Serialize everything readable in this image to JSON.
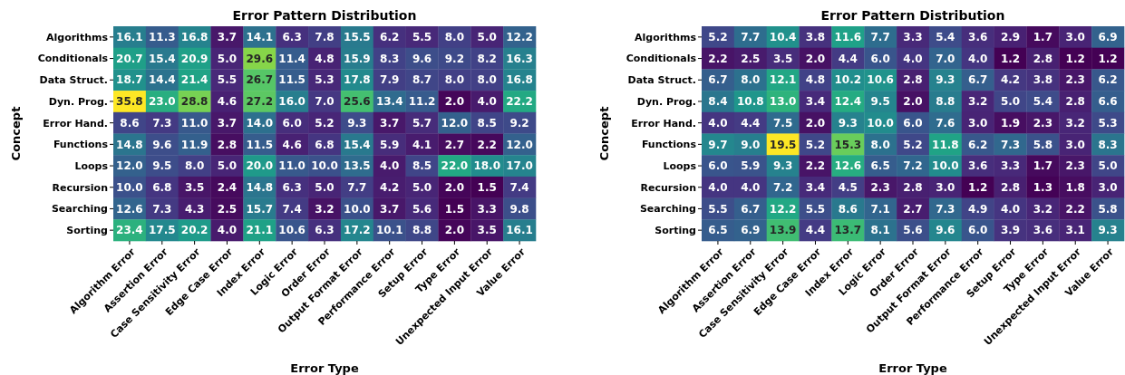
{
  "chart_data": [
    {
      "type": "heatmap",
      "title": "Error Pattern Distribution",
      "xlabel": "Error Type",
      "ylabel": "Concept",
      "categories": [
        "Algorithm Error",
        "Assertion Error",
        "Case Sensitivity Error",
        "Edge Case Error",
        "Index Error",
        "Logic Error",
        "Order Error",
        "Output Format Error",
        "Performance Error",
        "Setup Error",
        "Type Error",
        "Unexpected Input Error",
        "Value Error"
      ],
      "y_categories": [
        "Algorithms",
        "Conditionals",
        "Data Struct.",
        "Dyn. Prog.",
        "Error Hand.",
        "Functions",
        "Loops",
        "Recursion",
        "Searching",
        "Sorting"
      ],
      "data_labels": true,
      "cells": [
        [
          16.1,
          11.3,
          16.8,
          3.7,
          14.1,
          6.3,
          7.8,
          15.5,
          6.2,
          5.5,
          8.0,
          5.0,
          12.2
        ],
        [
          20.7,
          15.4,
          20.9,
          5.0,
          29.6,
          11.4,
          4.8,
          15.9,
          8.3,
          9.6,
          9.2,
          8.2,
          16.3
        ],
        [
          18.7,
          14.4,
          21.4,
          5.5,
          26.7,
          11.5,
          5.3,
          17.8,
          7.9,
          8.7,
          8.0,
          8.0,
          16.8
        ],
        [
          35.8,
          23.0,
          28.8,
          4.6,
          27.2,
          16.0,
          7.0,
          25.6,
          13.4,
          11.2,
          2.0,
          4.0,
          22.2
        ],
        [
          8.6,
          7.3,
          11.0,
          3.7,
          14.0,
          6.0,
          5.2,
          9.3,
          3.7,
          5.7,
          12.0,
          8.5,
          9.2
        ],
        [
          14.8,
          9.6,
          11.9,
          2.8,
          11.5,
          4.6,
          6.8,
          15.4,
          5.9,
          4.1,
          2.7,
          2.2,
          12.0
        ],
        [
          12.0,
          9.5,
          8.0,
          5.0,
          20.0,
          11.0,
          10.0,
          13.5,
          4.0,
          8.5,
          22.0,
          18.0,
          17.0
        ],
        [
          10.0,
          6.8,
          3.5,
          2.4,
          14.8,
          6.3,
          5.0,
          7.7,
          4.2,
          5.0,
          2.0,
          1.5,
          7.4
        ],
        [
          12.6,
          7.3,
          4.3,
          2.5,
          15.7,
          7.4,
          3.2,
          10.0,
          3.7,
          5.6,
          1.5,
          3.3,
          9.8
        ],
        [
          23.4,
          17.5,
          20.2,
          4.0,
          21.1,
          10.6,
          6.3,
          17.2,
          10.1,
          8.8,
          2.0,
          3.5,
          16.1
        ]
      ],
      "cell_labels": [
        [
          "16.1",
          "11.3",
          "16.8",
          "3.7",
          "14.1",
          "6.3",
          "7.8",
          "15.5",
          "6.2",
          "5.5",
          "8.0",
          "5.0",
          "12.2"
        ],
        [
          "20.7",
          "15.4",
          "20.9",
          "5.0",
          "29.6",
          "11.4",
          "4.8",
          "15.9",
          "8.3",
          "9.6",
          "9.2",
          "8.2",
          "16.3"
        ],
        [
          "18.7",
          "14.4",
          "21.4",
          "5.5",
          "26.7",
          "11.5",
          "5.3",
          "17.8",
          "7.9",
          "8.7",
          "8.0",
          "8.0",
          "16.8"
        ],
        [
          "35.8",
          "23.0",
          "28.8",
          "4.6",
          "27.2",
          "16.0",
          "7.0",
          "25.6",
          "13.4",
          "11.2",
          "2.0",
          "4.0",
          "22.2"
        ],
        [
          "8.6",
          "7.3",
          "11.0",
          "3.7",
          "14.0",
          "6.0",
          "5.2",
          "9.3",
          "3.7",
          "5.7",
          "12.0",
          "8.5",
          "9.2"
        ],
        [
          "14.8",
          "9.6",
          "11.9",
          "2.8",
          "11.5",
          "4.6",
          "6.8",
          "15.4",
          "5.9",
          "4.1",
          "2.7",
          "2.2",
          "12.0"
        ],
        [
          "12.0",
          "9.5",
          "8.0",
          "5.0",
          "20.0",
          "11.0",
          "10.0",
          "13.5",
          "4.0",
          "8.5",
          "22.0",
          "18.0",
          "17.0"
        ],
        [
          "10.0",
          "6.8",
          "3.5",
          "2.4",
          "14.8",
          "6.3",
          "5.0",
          "7.7",
          "4.2",
          "5.0",
          "2.0",
          "1.5",
          "7.4"
        ],
        [
          "12.6",
          "7.3",
          "4.3",
          "2.5",
          "15.7",
          "7.4",
          "3.2",
          "10.0",
          "3.7",
          "5.6",
          "1.5",
          "3.3",
          "9.8"
        ],
        [
          "23.4",
          "17.5",
          "20.2",
          "4.0",
          "21.1",
          "10.6",
          "6.3",
          "17.2",
          "10.1",
          "8.8",
          "2.0",
          "3.5",
          "16.1"
        ]
      ]
    },
    {
      "type": "heatmap",
      "title": "Error Pattern Distribution",
      "xlabel": "Error Type",
      "ylabel": "Concept",
      "categories": [
        "Algorithm Error",
        "Assertion Error",
        "Case Sensitivity Error",
        "Edge Case Error",
        "Index Error",
        "Logic Error",
        "Order Error",
        "Output Format Error",
        "Performance Error",
        "Setup Error",
        "Type Error",
        "Unexpected Input Error",
        "Value Error"
      ],
      "y_categories": [
        "Algorithms",
        "Conditionals",
        "Data Struct.",
        "Dyn. Prog.",
        "Error Hand.",
        "Functions",
        "Loops",
        "Recursion",
        "Searching",
        "Sorting"
      ],
      "data_labels": true,
      "cells": [
        [
          5.2,
          7.7,
          10.4,
          3.8,
          11.6,
          7.7,
          3.3,
          5.4,
          3.6,
          2.9,
          1.7,
          3.0,
          6.9
        ],
        [
          2.2,
          2.5,
          3.5,
          2.0,
          4.4,
          6.0,
          4.0,
          7.0,
          4.0,
          1.2,
          2.8,
          1.2,
          1.2
        ],
        [
          6.7,
          8.0,
          12.1,
          4.8,
          10.2,
          10.6,
          2.8,
          9.3,
          6.7,
          4.2,
          3.8,
          2.3,
          6.2
        ],
        [
          8.4,
          10.8,
          13.0,
          3.4,
          12.4,
          9.5,
          2.0,
          8.8,
          3.2,
          5.0,
          5.4,
          2.8,
          6.6
        ],
        [
          4.0,
          4.4,
          7.5,
          2.0,
          9.3,
          10.0,
          6.0,
          7.6,
          3.0,
          1.9,
          2.3,
          3.2,
          5.3
        ],
        [
          9.7,
          9.0,
          19.5,
          5.2,
          15.3,
          8.0,
          5.2,
          11.8,
          6.2,
          7.3,
          5.8,
          3.0,
          8.3
        ],
        [
          6.0,
          5.9,
          9.3,
          2.2,
          12.6,
          6.5,
          7.2,
          10.0,
          3.6,
          3.3,
          1.7,
          2.3,
          5.0
        ],
        [
          4.0,
          4.0,
          7.2,
          3.4,
          4.5,
          2.3,
          2.8,
          3.0,
          1.2,
          2.8,
          1.3,
          1.8,
          3.0
        ],
        [
          5.5,
          6.7,
          12.2,
          5.5,
          8.6,
          7.1,
          2.7,
          7.3,
          4.9,
          4.0,
          3.2,
          2.2,
          5.8
        ],
        [
          6.5,
          6.9,
          13.9,
          4.4,
          13.7,
          8.1,
          5.6,
          9.6,
          6.0,
          3.9,
          3.6,
          3.1,
          9.3
        ]
      ],
      "cell_labels": [
        [
          "5.2",
          "7.7",
          "10.4",
          "3.8",
          "11.6",
          "7.7",
          "3.3",
          "5.4",
          "3.6",
          "2.9",
          "1.7",
          "3.0",
          "6.9"
        ],
        [
          "2.2",
          "2.5",
          "3.5",
          "2.0",
          "4.4",
          "6.0",
          "4.0",
          "7.0",
          "4.0",
          "1.2",
          "2.8",
          "1.2",
          "1.2"
        ],
        [
          "6.7",
          "8.0",
          "12.1",
          "4.8",
          "10.2",
          "10.6",
          "2.8",
          "9.3",
          "6.7",
          "4.2",
          "3.8",
          "2.3",
          "6.2"
        ],
        [
          "8.4",
          "10.8",
          "13.0",
          "3.4",
          "12.4",
          "9.5",
          "2.0",
          "8.8",
          "3.2",
          "5.0",
          "5.4",
          "2.8",
          "6.6"
        ],
        [
          "4.0",
          "4.4",
          "7.5",
          "2.0",
          "9.3",
          "10.0",
          "6.0",
          "7.6",
          "3.0",
          "1.9",
          "2.3",
          "3.2",
          "5.3"
        ],
        [
          "9.7",
          "9.0",
          "19.5",
          "5.2",
          "15.3",
          "8.0",
          "5.2",
          "11.8",
          "6.2",
          "7.3",
          "5.8",
          "3.0",
          "8.3"
        ],
        [
          "6.0",
          "5.9",
          "9.3",
          "2.2",
          "12.6",
          "6.5",
          "7.2",
          "10.0",
          "3.6",
          "3.3",
          "1.7",
          "2.3",
          "5.0"
        ],
        [
          "4.0",
          "4.0",
          "7.2",
          "3.4",
          "4.5",
          "2.3",
          "2.8",
          "3.0",
          "1.2",
          "2.8",
          "1.3",
          "1.8",
          "3.0"
        ],
        [
          "5.5",
          "6.7",
          "12.2",
          "5.5",
          "8.6",
          "7.1",
          "2.7",
          "7.3",
          "4.9",
          "4.0",
          "3.2",
          "2.2",
          "5.8"
        ],
        [
          "6.5",
          "6.9",
          "13.9",
          "4.4",
          "13.7",
          "8.1",
          "5.6",
          "9.6",
          "6.0",
          "3.9",
          "3.6",
          "3.1",
          "9.3"
        ]
      ]
    }
  ]
}
